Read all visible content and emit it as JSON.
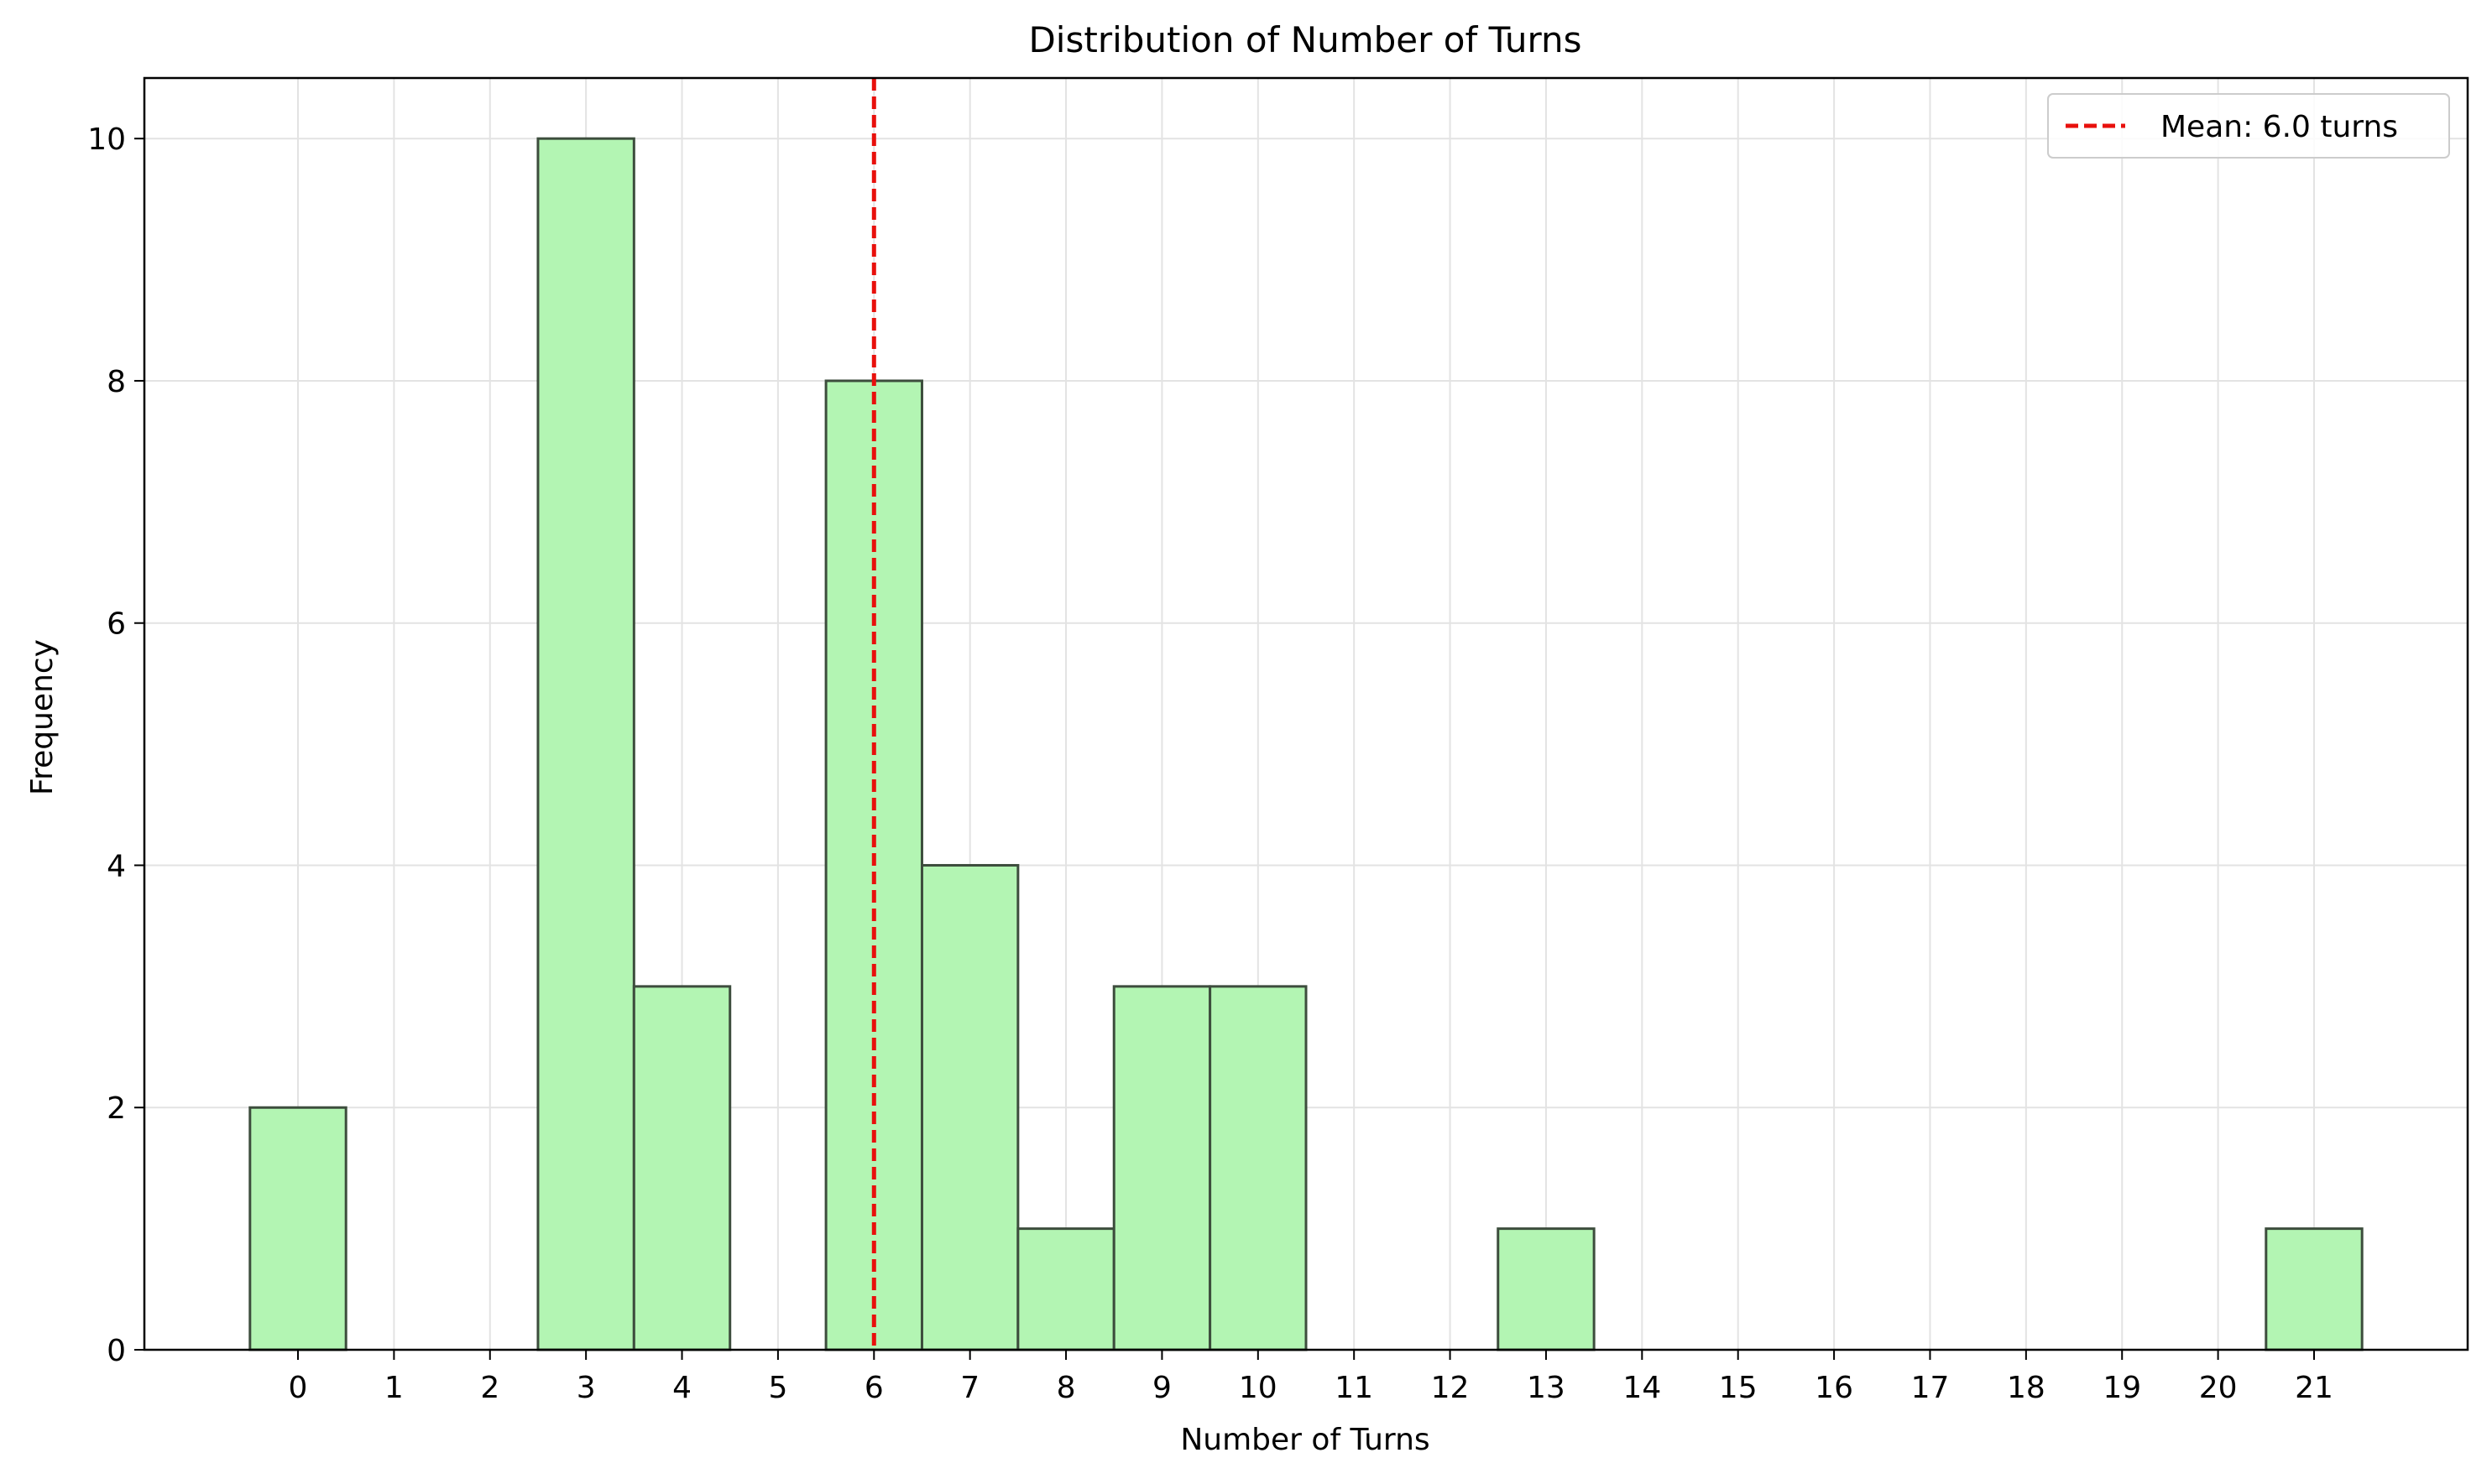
{
  "chart_data": {
    "type": "bar",
    "title": "Distribution of Number of Turns",
    "xlabel": "Number of Turns",
    "ylabel": "Frequency",
    "categories": [
      "0",
      "1",
      "2",
      "3",
      "4",
      "5",
      "6",
      "7",
      "8",
      "9",
      "10",
      "11",
      "12",
      "13",
      "14",
      "15",
      "16",
      "17",
      "18",
      "19",
      "20",
      "21"
    ],
    "values": [
      2,
      0,
      0,
      10,
      3,
      0,
      8,
      4,
      1,
      3,
      3,
      0,
      0,
      1,
      0,
      0,
      0,
      0,
      0,
      0,
      0,
      1
    ],
    "xlim": [
      -1.6,
      22.6
    ],
    "ylim": [
      0,
      10.5
    ],
    "yticks": [
      0,
      2,
      4,
      6,
      8,
      10
    ],
    "grid": true,
    "bar_color": "#b3f5b3",
    "bar_edge_color": "#3d4d3d",
    "mean": {
      "value": 6.0,
      "label": "Mean: 6.0 turns",
      "color": "#e8100c",
      "style": "dashed"
    },
    "legend": {
      "placement": "top-right",
      "entries": [
        "Mean: 6.0 turns"
      ]
    }
  }
}
